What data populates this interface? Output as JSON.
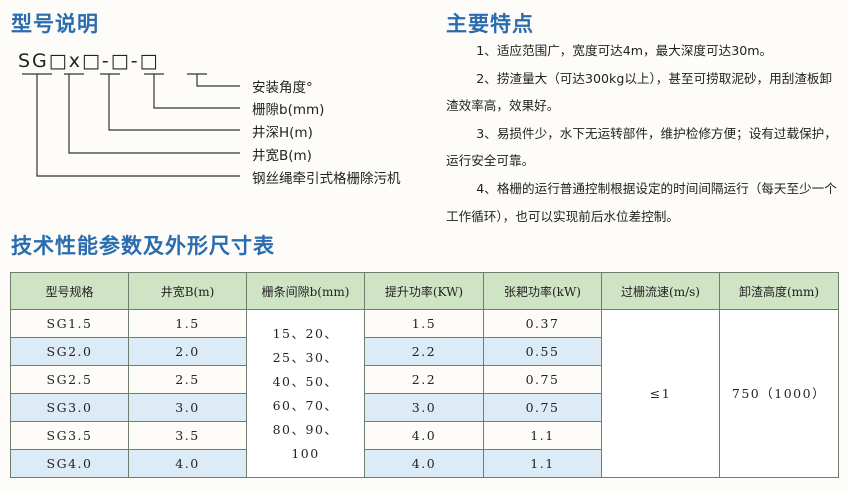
{
  "model": {
    "title": "型号说明",
    "code": "SG□x□-□-□",
    "labels": [
      "安装角度°",
      "栅隙b(mm)",
      "井深H(m)",
      "井宽B(m)",
      "钢丝绳牵引式格栅除污机"
    ]
  },
  "features": {
    "title": "主要特点",
    "items": [
      "1、适应范围广，宽度可达4m，最大深度可达30m。",
      "2、捞渣量大（可达300kg以上），甚至可捞取泥砂，用刮渣板卸渣效率高，效果好。",
      "3、易损件少，水下无运转部件，维护检修方便；设有过载保护，运行安全可靠。",
      "4、格栅的运行普通控制根据设定的时间间隔运行（每天至少一个工作循环），也可以实现前后水位差控制。"
    ]
  },
  "table": {
    "title": "技术性能参数及外形尺寸表",
    "headers": [
      "型号规格",
      "井宽B(m)",
      "栅条间隙b(mm)",
      "提升功率(KW)",
      "张耙功率(kW)",
      "过栅流速(m/s)",
      "卸渣高度(mm)"
    ],
    "gap": "15、20、25、30、40、50、60、70、80、90、100",
    "speed": "≤1",
    "height": "750（1000）",
    "rows": [
      [
        "SG1.5",
        "1.5",
        "1.5",
        "0.37"
      ],
      [
        "SG2.0",
        "2.0",
        "2.2",
        "0.55"
      ],
      [
        "SG2.5",
        "2.5",
        "2.2",
        "0.75"
      ],
      [
        "SG3.0",
        "3.0",
        "3.0",
        "0.75"
      ],
      [
        "SG3.5",
        "3.5",
        "4.0",
        "1.1"
      ],
      [
        "SG4.0",
        "4.0",
        "4.0",
        "1.1"
      ]
    ]
  },
  "colors": {
    "title": "#2a6cb0",
    "header_bg": "#cfe4c4",
    "row_alt": "#dcebf6"
  }
}
